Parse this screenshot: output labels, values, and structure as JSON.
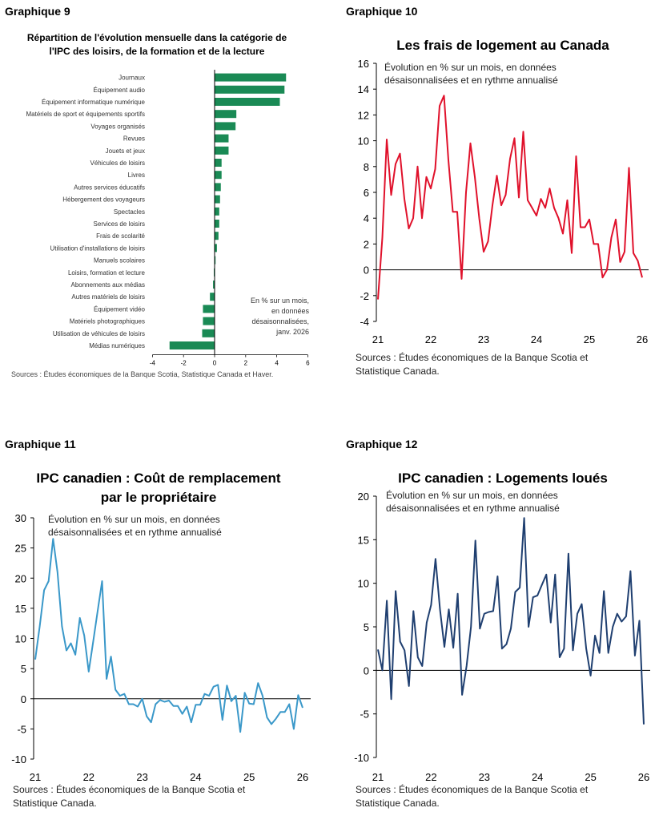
{
  "graphiques": [
    {
      "label": "Graphique 9",
      "chart_data": {
        "type": "bar",
        "orientation": "horizontal",
        "title": "Répartition de l'évolution mensuelle dans la catégorie de l'IPC des loisirs, de la formation et de la lecture",
        "annotation": "En % sur un mois, en données désaisonnalisées, janv. 2026",
        "categories": [
          "Journaux",
          "Équipement audio",
          "Équipement informatique numérique",
          "Matériels de sport et équipements sportifs",
          "Voyages organisés",
          "Revues",
          "Jouets et jeux",
          "Véhicules de loisirs",
          "Livres",
          "Autres services éducatifs",
          "Hébergement des voyageurs",
          "Spectacles",
          "Services de loisirs",
          "Frais de scolarité",
          "Utilisation d'installations de loisirs",
          "Manuels scolaires",
          "Loisirs, formation et lecture",
          "Abonnements aux médias",
          "Autres matériels de loisirs",
          "Équipement vidéo",
          "Matériels photographiques",
          "Utilisation de véhicules de loisirs",
          "Médias numériques"
        ],
        "values": [
          4.6,
          4.5,
          4.2,
          1.4,
          1.35,
          0.9,
          0.9,
          0.45,
          0.45,
          0.4,
          0.35,
          0.3,
          0.3,
          0.25,
          0.15,
          0.05,
          -0.05,
          -0.1,
          -0.3,
          -0.75,
          -0.75,
          -0.8,
          -2.9
        ],
        "xlim": [
          -4,
          6
        ],
        "xticks": [
          "-4",
          "-2",
          "0",
          "2",
          "4",
          "6"
        ],
        "color": "#1a8a55"
      },
      "source": "Sources : Études économiques de la Banque Scotia, Statistique Canada et Haver."
    },
    {
      "label": "Graphique 10",
      "chart_data": {
        "type": "line",
        "title": "Les frais de logement au Canada",
        "subtitle": "Évolution en % sur un mois, en données désaisonnalisées et en rythme annualisé",
        "x_start": "2021-01",
        "x_step": "1 mois",
        "values": [
          -2.3,
          2.5,
          10.1,
          5.8,
          8.2,
          9.0,
          5.5,
          3.2,
          4.0,
          8.0,
          4.0,
          7.2,
          6.3,
          7.8,
          12.7,
          13.5,
          8.5,
          4.5,
          4.5,
          -0.7,
          6.0,
          9.8,
          7.2,
          4.0,
          1.4,
          2.2,
          5.0,
          7.3,
          5.0,
          5.8,
          8.6,
          10.2,
          5.6,
          10.7,
          5.4,
          4.8,
          4.2,
          5.5,
          4.8,
          6.3,
          4.8,
          4.0,
          2.8,
          5.4,
          1.3,
          8.8,
          3.3,
          3.3,
          3.9,
          2.0,
          2.0,
          -0.6,
          0.0,
          2.5,
          3.9,
          0.6,
          1.4,
          7.9,
          1.3,
          0.7,
          -0.6
        ],
        "ylim": [
          -4,
          16
        ],
        "yticks": [
          "16",
          "14",
          "12",
          "10",
          "8",
          "6",
          "4",
          "2",
          "0",
          "-2",
          "-4"
        ],
        "xticks": [
          "21",
          "22",
          "23",
          "24",
          "25",
          "26"
        ],
        "color": "#e0112b"
      },
      "source": [
        "Sources : Études économiques de la Banque Scotia et",
        "Statistique Canada."
      ]
    },
    {
      "label": "Graphique 11",
      "chart_data": {
        "type": "line",
        "title": [
          "IPC canadien : Coût de remplacement",
          "par le propriétaire"
        ],
        "subtitle": "Évolution en % sur un mois, en données désaisonnalisées et en rythme annualisé",
        "x_start": "2021-01",
        "x_step": "1 mois",
        "values": [
          6.5,
          12.0,
          18.0,
          19.5,
          26.5,
          21.0,
          12.0,
          8.0,
          9.2,
          7.3,
          13.4,
          10.5,
          4.5,
          9.5,
          14.5,
          19.5,
          3.3,
          7.0,
          1.5,
          0.5,
          0.8,
          -0.9,
          -0.9,
          -1.3,
          0.0,
          -2.9,
          -3.9,
          -0.9,
          -0.2,
          -0.5,
          -0.3,
          -1.2,
          -1.2,
          -2.5,
          -1.3,
          -3.9,
          -1.0,
          -1.0,
          0.8,
          0.5,
          2.0,
          2.3,
          -3.5,
          2.2,
          -0.4,
          0.5,
          -5.5,
          1.0,
          -0.8,
          -0.9,
          2.6,
          0.5,
          -3.1,
          -4.2,
          -3.3,
          -2.2,
          -2.2,
          -0.9,
          -5.0,
          0.6,
          -1.5
        ],
        "ylim": [
          -10,
          30
        ],
        "yticks": [
          "30",
          "25",
          "20",
          "15",
          "10",
          "5",
          "0",
          "-5",
          "-10"
        ],
        "xticks": [
          "21",
          "22",
          "23",
          "24",
          "25",
          "26"
        ],
        "color": "#3a98c9"
      },
      "source": [
        "Sources : Études économiques de la Banque Scotia et",
        "Statistique Canada."
      ]
    },
    {
      "label": "Graphique 12",
      "chart_data": {
        "type": "line",
        "title": "IPC canadien : Logements loués",
        "subtitle": "Évolution en % sur un mois, en données désaisonnalisées et en rythme annualisé",
        "x_start": "2021-01",
        "x_step": "1 mois",
        "values": [
          2.4,
          0.0,
          8.0,
          -3.3,
          9.1,
          3.3,
          2.3,
          -1.8,
          6.8,
          1.5,
          0.5,
          5.5,
          7.5,
          12.8,
          7.0,
          2.7,
          7.0,
          2.6,
          8.8,
          -2.8,
          0.5,
          5.0,
          14.9,
          4.8,
          6.5,
          6.7,
          6.8,
          10.8,
          2.5,
          3.0,
          4.8,
          9.0,
          9.5,
          17.5,
          5.0,
          8.4,
          8.6,
          9.8,
          11.0,
          5.5,
          11.0,
          1.5,
          2.5,
          13.4,
          2.3,
          6.5,
          7.6,
          2.5,
          -0.6,
          4.0,
          2.0,
          9.1,
          2.0,
          5.0,
          6.5,
          5.6,
          6.2,
          11.4,
          1.7,
          5.7,
          -6.2
        ],
        "ylim": [
          -10,
          20
        ],
        "yticks": [
          "20",
          "15",
          "10",
          "5",
          "0",
          "-5",
          "-10"
        ],
        "xticks": [
          "21",
          "22",
          "23",
          "24",
          "25",
          "26"
        ],
        "color": "#1f3f70"
      },
      "source": [
        "Sources : Études économiques de la Banque Scotia et",
        "Statistique Canada."
      ]
    }
  ]
}
